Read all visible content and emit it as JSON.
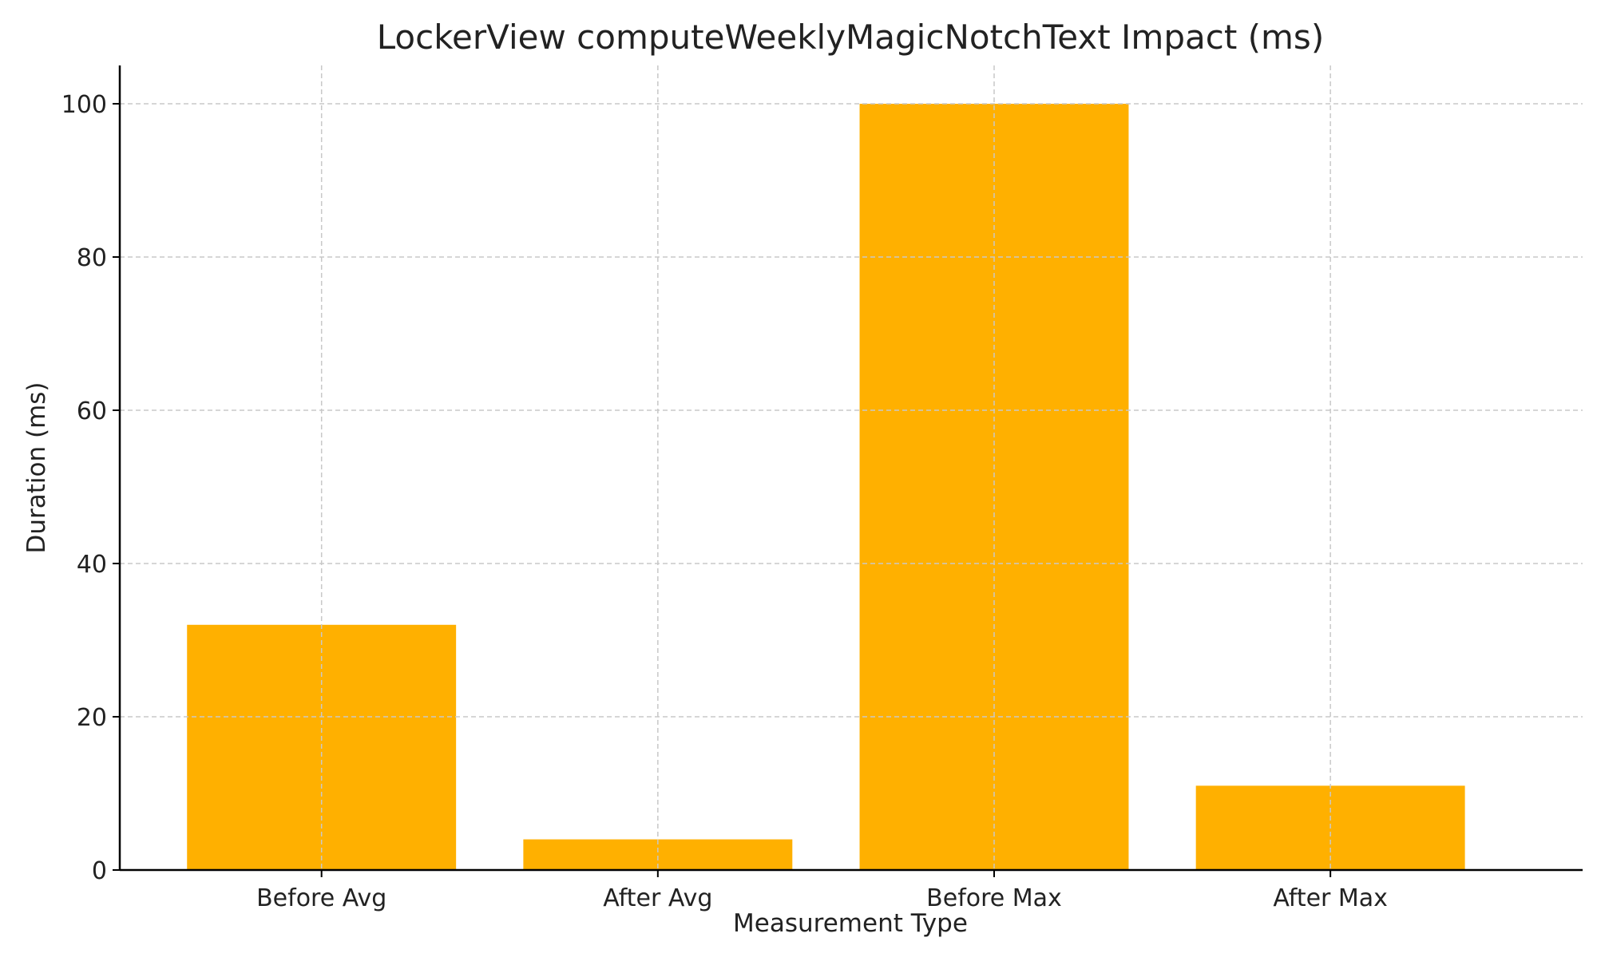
{
  "chart_data": {
    "type": "bar",
    "title": "LockerView computeWeeklyMagicNotchText Impact (ms)",
    "xlabel": "Measurement Type",
    "ylabel": "Duration (ms)",
    "categories": [
      "Before Avg",
      "After Avg",
      "Before Max",
      "After Max"
    ],
    "values": [
      32,
      4,
      100,
      11
    ],
    "ylim": [
      0,
      105
    ],
    "yticks": [
      0,
      20,
      40,
      60,
      80,
      100
    ],
    "grid": true,
    "bar_color": "#ffb000",
    "grid_color": "#c8c8c8",
    "axis_color": "#000000"
  }
}
